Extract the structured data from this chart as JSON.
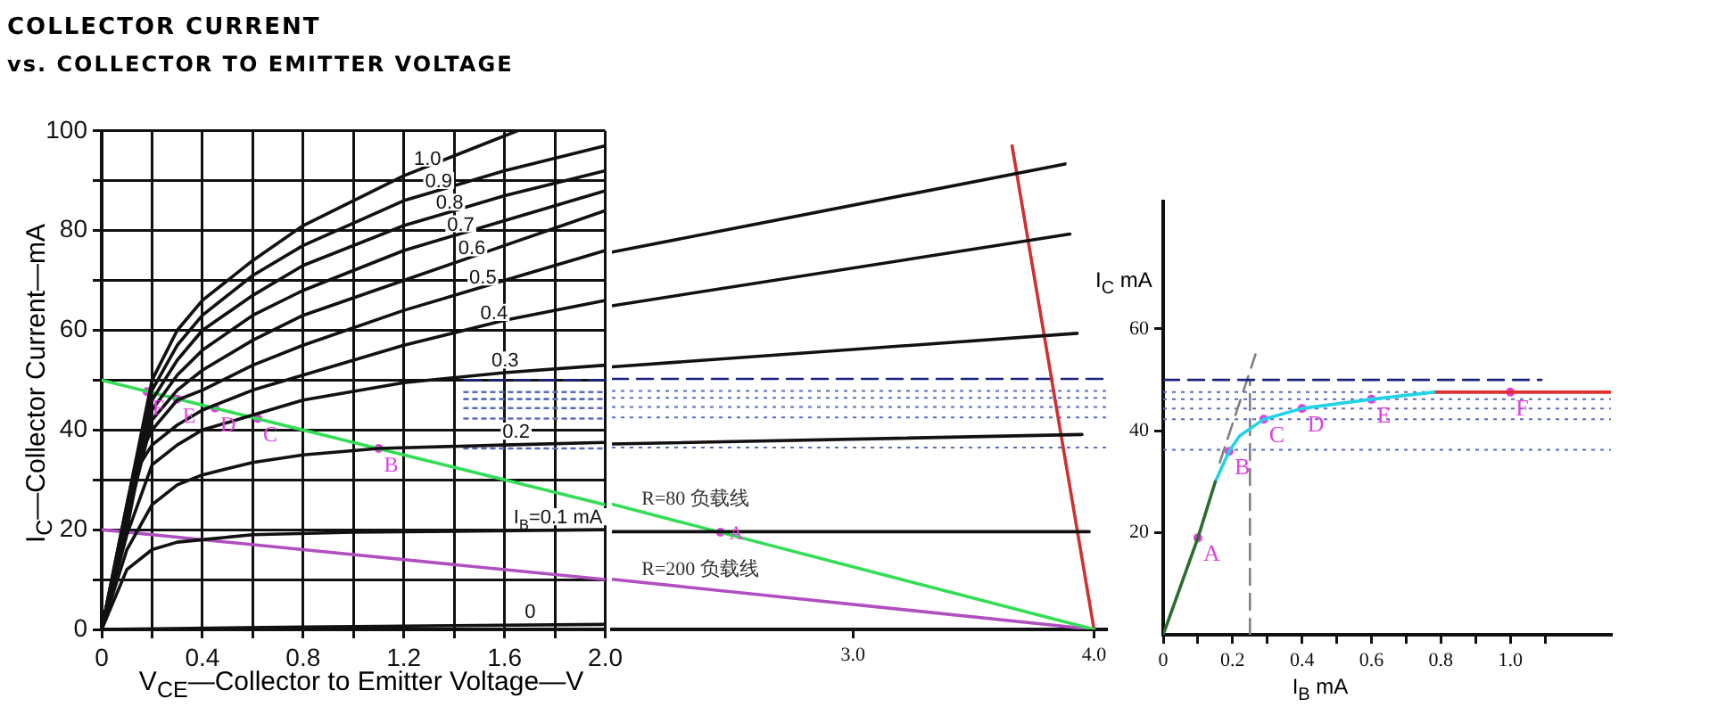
{
  "chart_data": [
    {
      "type": "line",
      "title": "COLLECTOR CURRENT",
      "subtitle": "vs. COLLECTOR TO EMITTER VOLTAGE",
      "xlabel": "V$_{CE}$—Collector to Emitter Voltage—V",
      "ylabel": "I$_{C}$—Collector Current—mA",
      "xlim": [
        0,
        2
      ],
      "ylim": [
        0,
        100
      ],
      "xticks": [
        0,
        {
          "value": 0.2,
          "label": null
        },
        0.4,
        {
          "value": 0.6,
          "label": null
        },
        0.8,
        {
          "value": 1.0,
          "label": null
        },
        1.2,
        {
          "value": 1.4,
          "label": null
        },
        1.6,
        {
          "value": 1.8,
          "label": null
        },
        {
          "value": 2,
          "label": "2.0"
        }
      ],
      "yticks": [
        0,
        {
          "value": 10,
          "label": null
        },
        20,
        {
          "value": 30,
          "label": null
        },
        40,
        {
          "value": 50,
          "label": null
        },
        60,
        {
          "value": 70,
          "label": null
        },
        80,
        {
          "value": 90,
          "label": null
        },
        100
      ],
      "grid": true,
      "marker": "none",
      "series": [
        {
          "name": "1.0",
          "color": "#111111",
          "x": [
            0,
            0.1,
            0.2,
            0.3,
            0.4,
            0.6,
            0.8,
            1.0,
            1.2,
            1.4,
            1.65
          ],
          "values": [
            0,
            25,
            50,
            60,
            66,
            74,
            81,
            86,
            91,
            95,
            100
          ]
        },
        {
          "name": "0.9",
          "color": "#111111",
          "x": [
            0,
            0.1,
            0.2,
            0.3,
            0.4,
            0.6,
            0.8,
            1.2,
            1.6,
            2.0
          ],
          "values": [
            0,
            25,
            48,
            57,
            63,
            71,
            77,
            86,
            92,
            97
          ]
        },
        {
          "name": "0.8",
          "color": "#111111",
          "x": [
            0,
            0.1,
            0.2,
            0.3,
            0.4,
            0.6,
            0.8,
            1.2,
            1.6,
            2.0
          ],
          "values": [
            0,
            24,
            46,
            54,
            60,
            67,
            73,
            81,
            87,
            92
          ]
        },
        {
          "name": "0.7",
          "color": "#111111",
          "x": [
            0,
            0.1,
            0.2,
            0.3,
            0.4,
            0.6,
            0.8,
            1.2,
            1.6,
            2.0
          ],
          "values": [
            0,
            23,
            44,
            51,
            56,
            63,
            68,
            76,
            82,
            88
          ]
        },
        {
          "name": "0.6",
          "color": "#111111",
          "x": [
            0,
            0.1,
            0.2,
            0.3,
            0.4,
            0.6,
            0.8,
            1.2,
            1.6,
            2.0
          ],
          "values": [
            0,
            22,
            42,
            48,
            52,
            58,
            63,
            70,
            77,
            84
          ]
        },
        {
          "name": "0.5",
          "color": "#111111",
          "x": [
            0,
            0.1,
            0.15,
            0.2,
            0.3,
            0.4,
            0.6,
            0.8,
            1.2,
            1.6,
            2.0
          ],
          "values": [
            0,
            21,
            35,
            40,
            46,
            48,
            53,
            57,
            64,
            70,
            76
          ]
        },
        {
          "name": "0.4",
          "color": "#111111",
          "x": [
            0,
            0.1,
            0.15,
            0.2,
            0.3,
            0.4,
            0.6,
            0.8,
            1.2,
            1.6,
            2.0
          ],
          "values": [
            0,
            20,
            33,
            37,
            41,
            44,
            48,
            51,
            57,
            62,
            66
          ]
        },
        {
          "name": "0.3",
          "color": "#111111",
          "x": [
            0,
            0.1,
            0.2,
            0.3,
            0.4,
            0.6,
            0.8,
            1.2,
            1.6,
            2.0
          ],
          "values": [
            0,
            19,
            33,
            37,
            40,
            43,
            46,
            49.5,
            51.5,
            53
          ]
        },
        {
          "name": "0.2",
          "color": "#111111",
          "x": [
            0,
            0.1,
            0.2,
            0.3,
            0.4,
            0.6,
            0.8,
            1.1,
            1.6,
            2.0
          ],
          "values": [
            0,
            16,
            25,
            29,
            31,
            33.5,
            35,
            36.3,
            37,
            37.5
          ]
        },
        {
          "name": "I$_{B}$=0.1 mA",
          "color": "#111111",
          "x": [
            0,
            0.1,
            0.2,
            0.3,
            0.4,
            0.6,
            1.0,
            2.0
          ],
          "values": [
            0,
            12,
            16,
            17.5,
            18,
            19,
            19.5,
            20
          ]
        },
        {
          "name": "0",
          "color": "#111111",
          "x": [
            0,
            0.8,
            2.0
          ],
          "values": [
            0,
            0.5,
            1
          ]
        },
        {
          "color": "#33dd55",
          "x": [
            0,
            2
          ],
          "values": [
            50,
            25
          ]
        },
        {
          "color": "#b050c0",
          "x": [
            0,
            2
          ],
          "values": [
            20,
            10
          ]
        },
        {
          "color": "#1a237e",
          "line_style": "dashed",
          "x": [
            1.44,
            2
          ],
          "values": [
            50,
            50
          ]
        },
        {
          "color": "#5c6bc0",
          "line_style": "dotted",
          "x": [
            1.44,
            2
          ],
          "values": [
            47.6,
            47.6
          ]
        },
        {
          "color": "#5c6bc0",
          "line_style": "dotted",
          "x": [
            1.44,
            2
          ],
          "values": [
            46.2,
            46.2
          ]
        },
        {
          "color": "#5c6bc0",
          "line_style": "dotted",
          "x": [
            1.44,
            2
          ],
          "values": [
            44.4,
            44.4
          ]
        },
        {
          "color": "#5c6bc0",
          "line_style": "dotted",
          "x": [
            1.44,
            2
          ],
          "values": [
            42.3,
            42.3
          ]
        },
        {
          "color": "#5c6bc0",
          "line_style": "dotted",
          "x": [
            1.44,
            2
          ],
          "values": [
            36.3,
            36.3
          ]
        },
        {
          "type": "scatter",
          "marker": "circle",
          "color": "#e040e0",
          "x": [
            0.18,
            0.3,
            0.45,
            0.62,
            1.1
          ],
          "values": [
            47.7,
            46.2,
            44.4,
            42.3,
            36.3
          ],
          "value_labels": [
            "F",
            "E",
            "D",
            "C",
            "B"
          ]
        }
      ]
    },
    {
      "type": "line",
      "xlim": [
        2,
        4.05
      ],
      "ylim": [
        0,
        100
      ],
      "tick_labels": "x",
      "xticks": [
        {
          "value": 3,
          "label": "3.0"
        },
        {
          "value": 4,
          "label": "4.0"
        }
      ],
      "marker": "none",
      "series": [
        {
          "color": "#111111",
          "x": [
            2,
            3.88
          ],
          "values": [
            75.3,
            92.9
          ]
        },
        {
          "color": "#111111",
          "x": [
            2,
            3.9
          ],
          "values": [
            64.6,
            78.9
          ]
        },
        {
          "color": "#111111",
          "x": [
            2,
            3.93
          ],
          "values": [
            52.4,
            59.1
          ]
        },
        {
          "color": "#111111",
          "x": [
            2,
            3.95
          ],
          "values": [
            37,
            38.9
          ]
        },
        {
          "color": "#111111",
          "x": [
            2,
            3.98
          ],
          "values": [
            19.5,
            19.5
          ]
        },
        {
          "name": "R=80 负载线",
          "color": "#33dd55",
          "x": [
            2,
            4
          ],
          "values": [
            25,
            0
          ]
        },
        {
          "name": "R=200 负载线",
          "color": "#b050c0",
          "x": [
            2,
            4
          ],
          "values": [
            10,
            0
          ]
        },
        {
          "color": "#d03030",
          "x": [
            3.66,
            4
          ],
          "values": [
            96.5,
            0
          ]
        },
        {
          "color": "#1a237e",
          "line_style": "dashed",
          "x": [
            2,
            4.05
          ],
          "values": [
            50,
            50
          ]
        },
        {
          "type": "scatter",
          "marker": "circle",
          "color": "#e040e0",
          "x": [
            2.45
          ],
          "values": [
            19.4
          ],
          "value_labels": [
            "A"
          ]
        }
      ],
      "ref_lines": [
        {
          "axis": "y",
          "value": 47.6,
          "color": "#5c6bc0",
          "line_style": "dotted"
        },
        {
          "axis": "y",
          "value": 46.2,
          "color": "#5c6bc0",
          "line_style": "dotted"
        },
        {
          "axis": "y",
          "value": 44.4,
          "color": "#5c6bc0",
          "line_style": "dotted"
        },
        {
          "axis": "y",
          "value": 42.3,
          "color": "#5c6bc0",
          "line_style": "dotted"
        },
        {
          "axis": "y",
          "value": 36.3,
          "color": "#5c6bc0",
          "line_style": "dotted"
        }
      ]
    },
    {
      "type": "line",
      "xlabel": "I$_{B}$  mA",
      "ylabel": "I$_{C}$ mA",
      "xlim": [
        0,
        1.29
      ],
      "ylim": [
        0,
        85
      ],
      "xticks": [
        0,
        {
          "value": 0.1,
          "label": null
        },
        0.2,
        {
          "value": 0.3,
          "label": null
        },
        0.4,
        {
          "value": 0.5,
          "label": null
        },
        0.6,
        {
          "value": 0.7,
          "label": null
        },
        0.8,
        {
          "value": 0.9,
          "label": null
        },
        {
          "value": 1,
          "label": "1.0"
        },
        {
          "value": 1.1,
          "label": null
        }
      ],
      "yticks": [
        20,
        40,
        60
      ],
      "marker": "none",
      "series": [
        {
          "color": "#2e6b2e",
          "x": [
            0,
            0.1,
            0.15
          ],
          "values": [
            0,
            19,
            30
          ]
        },
        {
          "color": "#22d3e6",
          "x": [
            0.15,
            0.19,
            0.22,
            0.29,
            0.4,
            0.6,
            0.78
          ],
          "values": [
            30,
            36,
            39,
            42.3,
            44.4,
            46.2,
            47.6
          ]
        },
        {
          "color": "#e03030",
          "x": [
            0.78,
            1.29
          ],
          "values": [
            47.6,
            47.6
          ]
        },
        {
          "color": "#1a237e",
          "line_style": "dashed",
          "x": [
            0,
            1.09
          ],
          "values": [
            50,
            50
          ]
        },
        {
          "color": "#808080",
          "line_style": "dashed",
          "x": [
            0.163,
            0.266
          ],
          "values": [
            33.8,
            55
          ]
        },
        {
          "color": "#808080",
          "line_style": "dashed",
          "x": [
            0.25,
            0.25
          ],
          "values": [
            0,
            50
          ]
        },
        {
          "type": "scatter",
          "marker": "circle",
          "color": "#e040e0",
          "x": [
            0.1,
            0.19,
            0.29,
            0.4,
            0.6,
            1.0
          ],
          "values": [
            19,
            36,
            42.3,
            44.4,
            46.2,
            47.6
          ],
          "value_labels": [
            "A",
            "B",
            "C",
            "D",
            "E",
            "F"
          ]
        }
      ],
      "ref_lines": [
        {
          "axis": "y",
          "value": 47.6,
          "color": "#5c6bc0",
          "line_style": "dotted"
        },
        {
          "axis": "y",
          "value": 46.2,
          "color": "#5c6bc0",
          "line_style": "dotted"
        },
        {
          "axis": "y",
          "value": 44.4,
          "color": "#5c6bc0",
          "line_style": "dotted"
        },
        {
          "axis": "y",
          "value": 42.3,
          "color": "#5c6bc0",
          "line_style": "dotted"
        },
        {
          "axis": "y",
          "value": 36.3,
          "color": "#5c6bc0",
          "line_style": "dotted"
        }
      ]
    }
  ]
}
